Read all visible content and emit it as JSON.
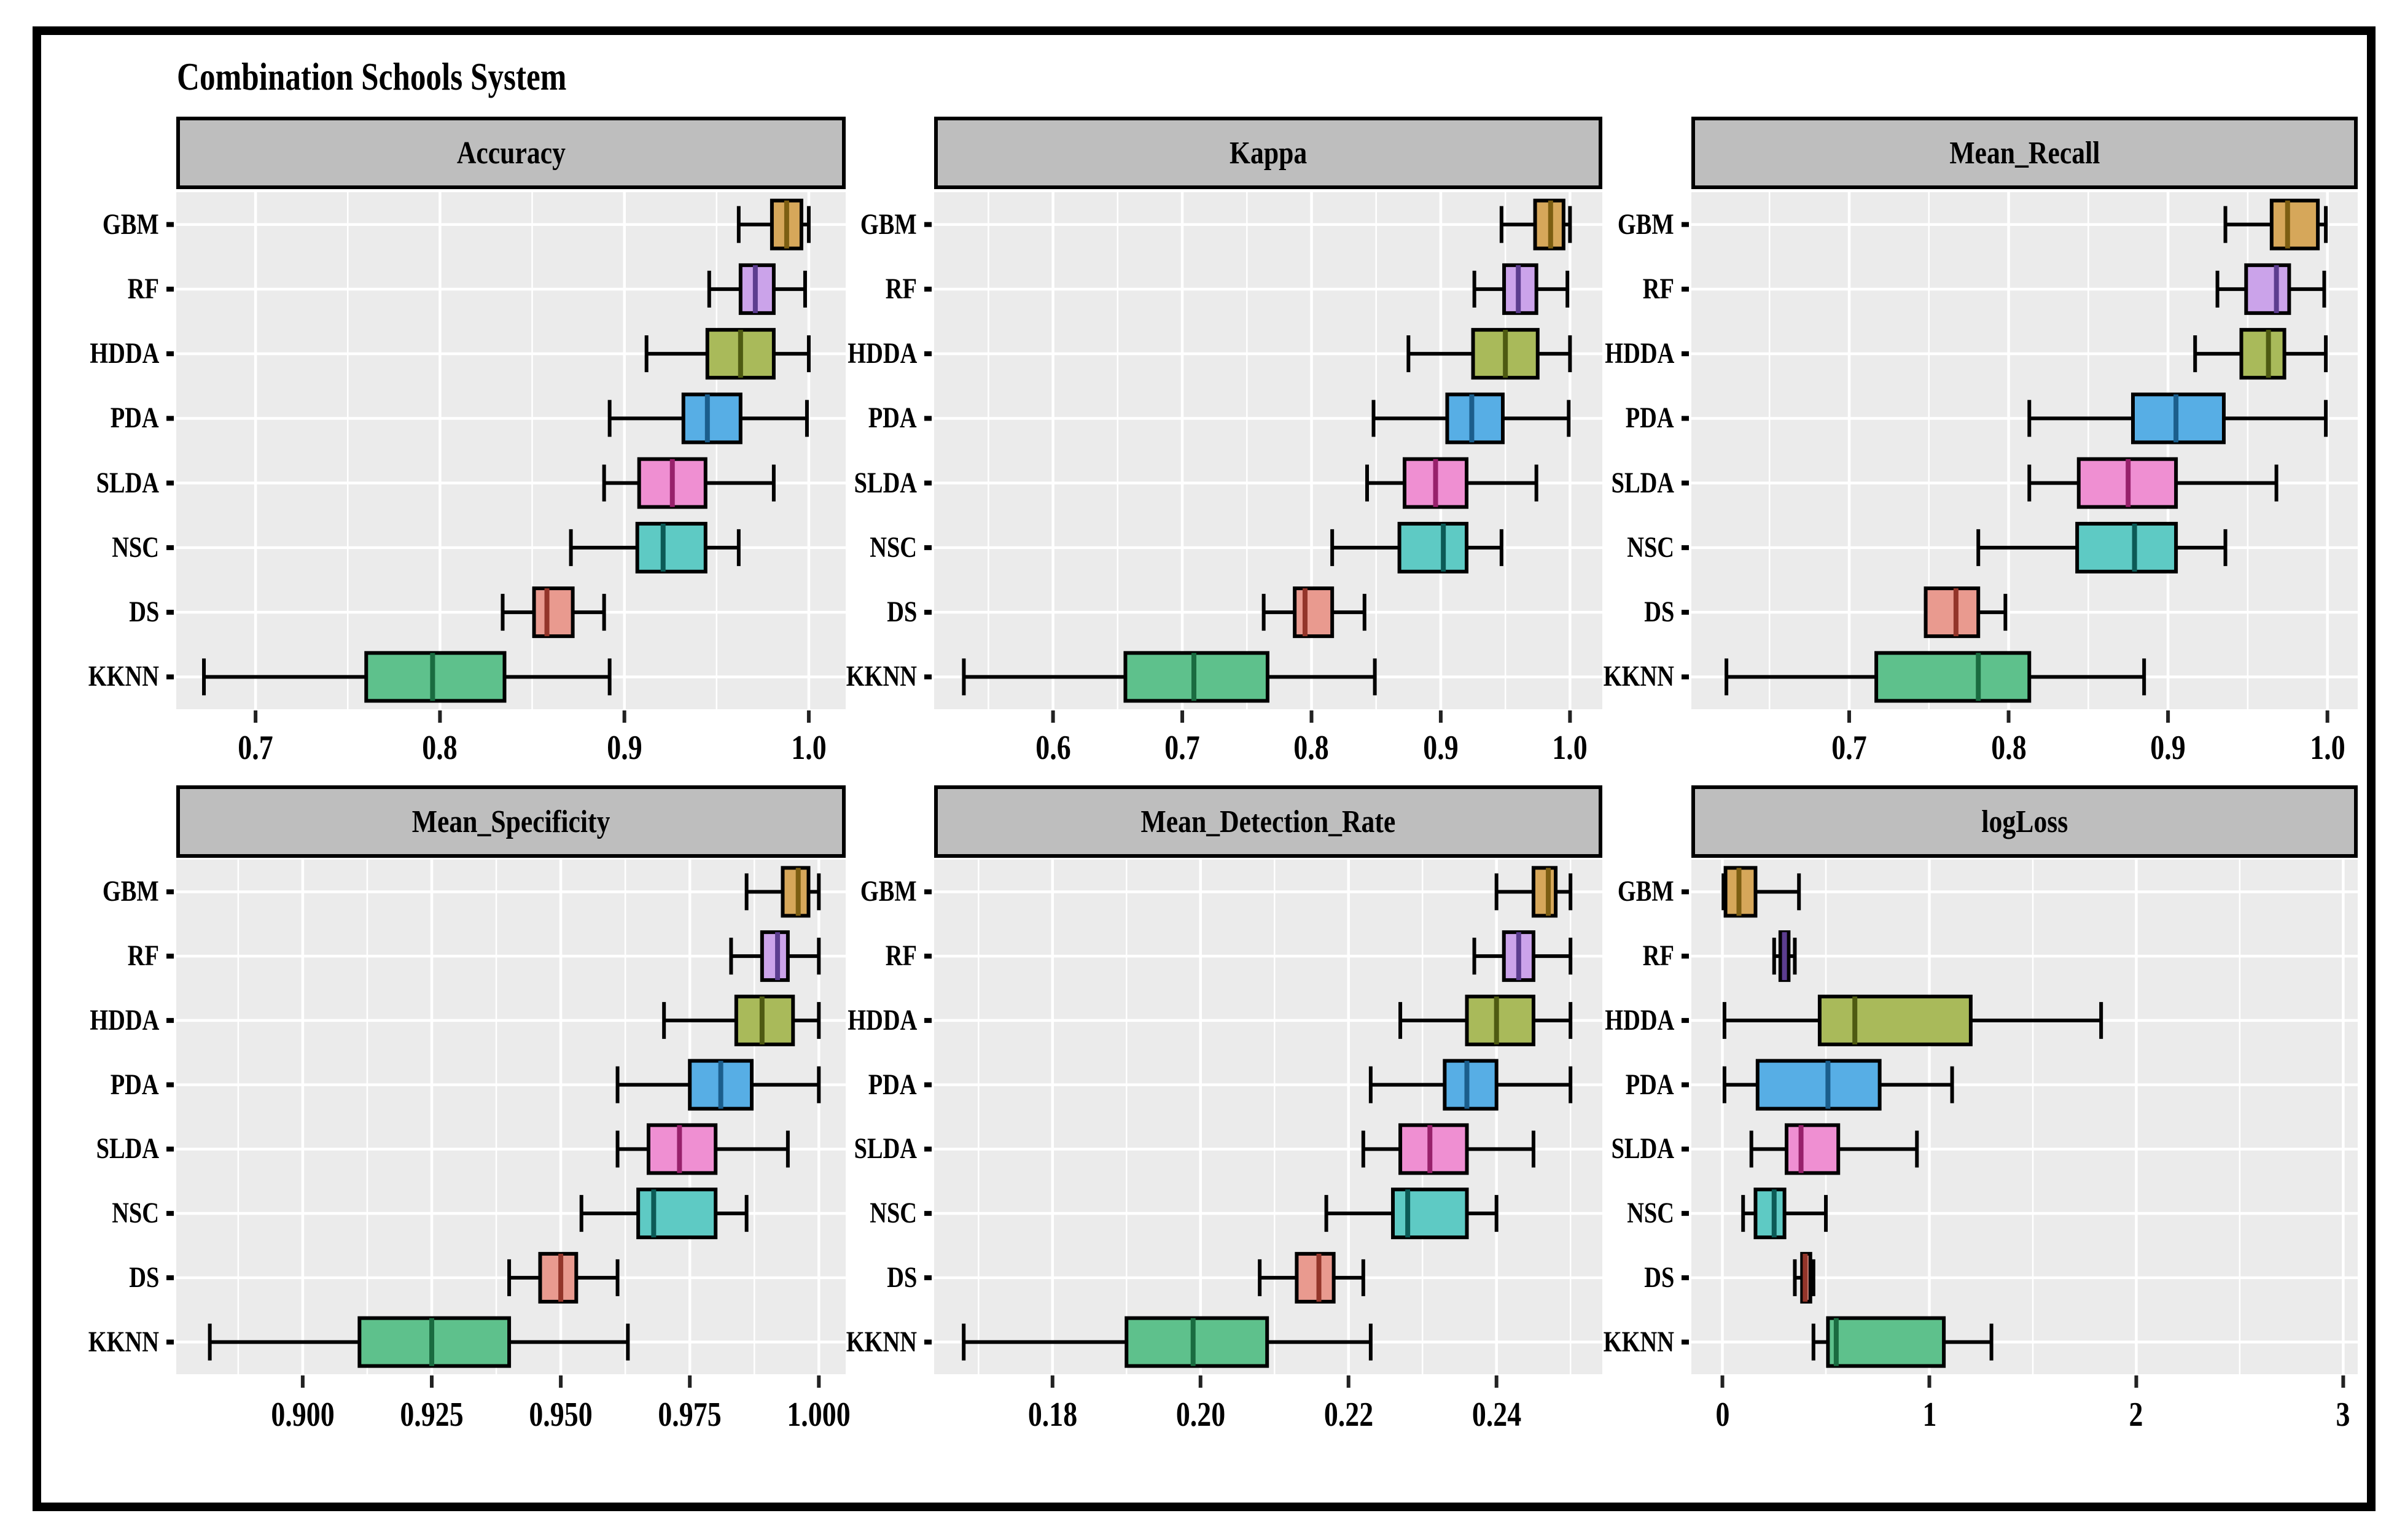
{
  "title": "Combination Schools System",
  "chart_data": {
    "type": "boxplot",
    "title": "Combination Schools System",
    "orientation": "horizontal",
    "grid": "white-on-gray, minor and major vertical gridlines, major horizontal line per category",
    "legend_position": "none",
    "categories_top_to_bottom": [
      "GBM",
      "RF",
      "HDDA",
      "PDA",
      "SLDA",
      "NSC",
      "DS",
      "KKNN"
    ],
    "stat_order": [
      "min",
      "q1",
      "median",
      "q3",
      "max"
    ],
    "algorithms": [
      {
        "name": "GBM",
        "fill": "#D6A75A",
        "median_color": "#7c5e12"
      },
      {
        "name": "RF",
        "fill": "#CBA3EA",
        "median_color": "#5c3d8f"
      },
      {
        "name": "HDDA",
        "fill": "#A9BA5A",
        "median_color": "#4e5a12"
      },
      {
        "name": "PDA",
        "fill": "#57AEE5",
        "median_color": "#1b5e8c"
      },
      {
        "name": "SLDA",
        "fill": "#EF8FD2",
        "median_color": "#97216b"
      },
      {
        "name": "NSC",
        "fill": "#5ECAC4",
        "median_color": "#0c5a56"
      },
      {
        "name": "DS",
        "fill": "#E99A8F",
        "median_color": "#93352a"
      },
      {
        "name": "KKNN",
        "fill": "#5EC18C",
        "median_color": "#1a6b40"
      }
    ],
    "panels": [
      {
        "id": "accuracy",
        "label": "Accuracy",
        "row": 0,
        "col": 0,
        "xlim": [
          0.657,
          1.02
        ],
        "ticks": [
          0.7,
          0.8,
          0.9,
          1.0
        ],
        "tick_labels": [
          "0.7",
          "0.8",
          "0.9",
          "1.0"
        ],
        "minor_step": 0.05,
        "stats": {
          "GBM": [
            0.962,
            0.98,
            0.988,
            0.996,
            1.0
          ],
          "RF": [
            0.946,
            0.963,
            0.971,
            0.981,
            0.998
          ],
          "HDDA": [
            0.912,
            0.945,
            0.963,
            0.981,
            1.0
          ],
          "PDA": [
            0.892,
            0.932,
            0.945,
            0.963,
            0.999
          ],
          "SLDA": [
            0.889,
            0.908,
            0.926,
            0.944,
            0.981
          ],
          "NSC": [
            0.871,
            0.907,
            0.921,
            0.944,
            0.962
          ],
          "DS": [
            0.834,
            0.851,
            0.858,
            0.872,
            0.889
          ],
          "KKNN": [
            0.672,
            0.76,
            0.796,
            0.835,
            0.892
          ]
        }
      },
      {
        "id": "kappa",
        "label": "Kappa",
        "row": 0,
        "col": 1,
        "xlim": [
          0.508,
          1.025
        ],
        "ticks": [
          0.6,
          0.7,
          0.8,
          0.9,
          1.0
        ],
        "tick_labels": [
          "0.6",
          "0.7",
          "0.8",
          "0.9",
          "1.0"
        ],
        "minor_step": 0.05,
        "stats": {
          "GBM": [
            0.947,
            0.973,
            0.985,
            0.995,
            1.0
          ],
          "RF": [
            0.926,
            0.949,
            0.96,
            0.974,
            0.998
          ],
          "HDDA": [
            0.875,
            0.925,
            0.95,
            0.975,
            1.0
          ],
          "PDA": [
            0.848,
            0.905,
            0.924,
            0.948,
            0.999
          ],
          "SLDA": [
            0.843,
            0.872,
            0.896,
            0.92,
            0.974
          ],
          "NSC": [
            0.816,
            0.868,
            0.902,
            0.92,
            0.947
          ],
          "DS": [
            0.763,
            0.787,
            0.795,
            0.816,
            0.841
          ],
          "KKNN": [
            0.531,
            0.656,
            0.709,
            0.766,
            0.849
          ]
        }
      },
      {
        "id": "mean_recall",
        "label": "Mean_Recall",
        "row": 0,
        "col": 2,
        "xlim": [
          0.601,
          1.019
        ],
        "ticks": [
          0.7,
          0.8,
          0.9,
          1.0
        ],
        "tick_labels": [
          "0.7",
          "0.8",
          "0.9",
          "1.0"
        ],
        "minor_step": 0.05,
        "stats": {
          "GBM": [
            0.936,
            0.965,
            0.975,
            0.994,
            0.999
          ],
          "RF": [
            0.931,
            0.949,
            0.968,
            0.976,
            0.998
          ],
          "HDDA": [
            0.917,
            0.946,
            0.963,
            0.973,
            0.999
          ],
          "PDA": [
            0.813,
            0.878,
            0.905,
            0.935,
            0.999
          ],
          "SLDA": [
            0.813,
            0.844,
            0.875,
            0.905,
            0.968
          ],
          "NSC": [
            0.781,
            0.843,
            0.879,
            0.905,
            0.936
          ],
          "DS": [
            0.748,
            0.748,
            0.767,
            0.781,
            0.798
          ],
          "KKNN": [
            0.623,
            0.717,
            0.781,
            0.813,
            0.885
          ]
        }
      },
      {
        "id": "mean_specificity",
        "label": "Mean_Specificity",
        "row": 1,
        "col": 0,
        "xlim": [
          0.8755,
          1.0052
        ],
        "ticks": [
          0.9,
          0.925,
          0.95,
          0.975,
          1.0
        ],
        "tick_labels": [
          "0.900",
          "0.925",
          "0.950",
          "0.975",
          "1.000"
        ],
        "minor_step": 0.0125,
        "stats": {
          "GBM": [
            0.986,
            0.993,
            0.996,
            0.998,
            1.0
          ],
          "RF": [
            0.983,
            0.989,
            0.992,
            0.994,
            1.0
          ],
          "HDDA": [
            0.97,
            0.984,
            0.989,
            0.995,
            1.0
          ],
          "PDA": [
            0.961,
            0.975,
            0.981,
            0.987,
            1.0
          ],
          "SLDA": [
            0.961,
            0.967,
            0.973,
            0.98,
            0.994
          ],
          "NSC": [
            0.954,
            0.965,
            0.968,
            0.98,
            0.986
          ],
          "DS": [
            0.94,
            0.946,
            0.95,
            0.953,
            0.961
          ],
          "KKNN": [
            0.882,
            0.911,
            0.925,
            0.94,
            0.963
          ]
        }
      },
      {
        "id": "mean_detection_rate",
        "label": "Mean_Detection_Rate",
        "row": 1,
        "col": 1,
        "xlim": [
          0.164,
          0.2543
        ],
        "ticks": [
          0.18,
          0.2,
          0.22,
          0.24
        ],
        "tick_labels": [
          "0.18",
          "0.20",
          "0.22",
          "0.24"
        ],
        "minor_step": 0.01,
        "stats": {
          "GBM": [
            0.24,
            0.245,
            0.247,
            0.248,
            0.25
          ],
          "RF": [
            0.237,
            0.241,
            0.243,
            0.245,
            0.25
          ],
          "HDDA": [
            0.227,
            0.236,
            0.24,
            0.245,
            0.25
          ],
          "PDA": [
            0.223,
            0.233,
            0.236,
            0.24,
            0.25
          ],
          "SLDA": [
            0.222,
            0.227,
            0.231,
            0.236,
            0.245
          ],
          "NSC": [
            0.217,
            0.226,
            0.228,
            0.236,
            0.24
          ],
          "DS": [
            0.208,
            0.213,
            0.216,
            0.218,
            0.222
          ],
          "KKNN": [
            0.168,
            0.19,
            0.199,
            0.209,
            0.223
          ]
        }
      },
      {
        "id": "logloss",
        "label": "logLoss",
        "row": 1,
        "col": 2,
        "xlim": [
          -0.15,
          3.07
        ],
        "ticks": [
          0,
          1,
          2,
          3
        ],
        "tick_labels": [
          "0",
          "1",
          "2",
          "3"
        ],
        "minor_step": 0.5,
        "stats": {
          "GBM": [
            0.005,
            0.015,
            0.08,
            0.16,
            0.37
          ],
          "RF": [
            0.25,
            0.28,
            0.3,
            0.32,
            0.35
          ],
          "HDDA": [
            0.01,
            0.47,
            0.64,
            1.2,
            1.83
          ],
          "PDA": [
            0.01,
            0.17,
            0.51,
            0.76,
            1.11
          ],
          "SLDA": [
            0.14,
            0.31,
            0.38,
            0.56,
            0.94
          ],
          "NSC": [
            0.1,
            0.16,
            0.25,
            0.3,
            0.5
          ],
          "DS": [
            0.35,
            0.385,
            0.4,
            0.425,
            0.44
          ],
          "KKNN": [
            0.44,
            0.51,
            0.55,
            1.07,
            1.3
          ]
        }
      }
    ],
    "style": {
      "panel_bg": "#EBEBEB",
      "gridline_color": "#FFFFFF",
      "header_bg": "#BEBEBE",
      "box_border": "#000000",
      "whisker_color": "#000000",
      "text_color": "#000000"
    }
  }
}
